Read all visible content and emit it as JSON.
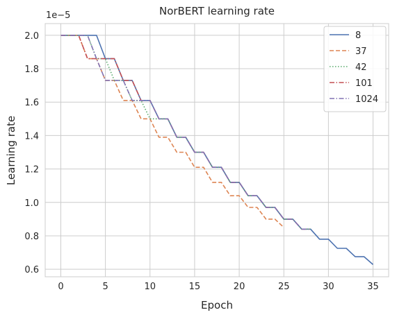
{
  "chart_data": {
    "type": "line",
    "title": "NorBERT learning rate",
    "xlabel": "Epoch",
    "ylabel": "Learning rate",
    "y_offset_label": "1e−5",
    "xlim": [
      -1.75,
      36.75
    ],
    "ylim": [
      0.555,
      2.07
    ],
    "x_ticks": [
      0,
      5,
      10,
      15,
      20,
      25,
      30,
      35
    ],
    "y_ticks": [
      0.6,
      0.8,
      1.0,
      1.2,
      1.4,
      1.6,
      1.8,
      2.0
    ],
    "y_tick_labels": [
      "0.6",
      "0.8",
      "1.0",
      "1.2",
      "1.4",
      "1.6",
      "1.8",
      "2.0"
    ],
    "grid": true,
    "legend_position": "top-right",
    "series": [
      {
        "name": "8",
        "color": "#4c72b0",
        "dash": "solid",
        "x": [
          0,
          4,
          5,
          6,
          7,
          8,
          9,
          10,
          11,
          12,
          13,
          14,
          15,
          16,
          17,
          18,
          19,
          20,
          21,
          22,
          23,
          24,
          25,
          26,
          27,
          28,
          29,
          30,
          31,
          32,
          33,
          34,
          35
        ],
        "y": [
          2.0,
          2.0,
          1.86,
          1.86,
          1.73,
          1.73,
          1.61,
          1.61,
          1.5,
          1.5,
          1.39,
          1.39,
          1.3,
          1.3,
          1.21,
          1.21,
          1.12,
          1.12,
          1.04,
          1.04,
          0.97,
          0.97,
          0.9,
          0.9,
          0.84,
          0.84,
          0.78,
          0.78,
          0.725,
          0.725,
          0.675,
          0.675,
          0.628
        ]
      },
      {
        "name": "37",
        "color": "#dd8452",
        "dash": "dashed",
        "x": [
          0,
          2,
          3,
          4,
          5,
          6,
          7,
          8,
          9,
          10,
          11,
          12,
          13,
          14,
          15,
          16,
          17,
          18,
          19,
          20,
          21,
          22,
          23,
          24,
          25
        ],
        "y": [
          2.0,
          2.0,
          1.86,
          1.86,
          1.73,
          1.73,
          1.61,
          1.61,
          1.5,
          1.5,
          1.39,
          1.39,
          1.3,
          1.3,
          1.21,
          1.21,
          1.12,
          1.12,
          1.04,
          1.04,
          0.97,
          0.97,
          0.9,
          0.9,
          0.85
        ]
      },
      {
        "name": "42",
        "color": "#55a868",
        "dash": "dotted",
        "x": [
          0,
          3,
          4,
          5,
          6,
          7,
          8,
          9,
          10,
          11,
          12,
          13,
          14,
          15,
          16,
          17,
          18,
          19,
          20,
          21,
          22,
          23,
          24,
          25,
          26,
          27,
          28
        ],
        "y": [
          2.0,
          2.0,
          1.86,
          1.86,
          1.73,
          1.73,
          1.61,
          1.61,
          1.5,
          1.5,
          1.5,
          1.39,
          1.39,
          1.3,
          1.3,
          1.21,
          1.21,
          1.12,
          1.12,
          1.04,
          1.04,
          0.97,
          0.97,
          0.9,
          0.9,
          0.84,
          0.84
        ]
      },
      {
        "name": "101",
        "color": "#c44e52",
        "dash": "dashdot",
        "x": [
          0,
          2,
          3,
          5,
          6,
          7,
          8,
          9,
          10,
          11,
          12,
          13,
          14,
          15,
          16,
          17,
          18,
          19,
          20,
          21,
          22,
          23,
          24,
          25,
          26,
          27,
          28
        ],
        "y": [
          2.0,
          2.0,
          1.86,
          1.86,
          1.86,
          1.73,
          1.73,
          1.61,
          1.61,
          1.5,
          1.5,
          1.39,
          1.39,
          1.3,
          1.3,
          1.21,
          1.21,
          1.12,
          1.12,
          1.04,
          1.04,
          0.97,
          0.97,
          0.9,
          0.9,
          0.84,
          0.84
        ]
      },
      {
        "name": "1024",
        "color": "#8172b3",
        "dash": "dashdot",
        "x": [
          0,
          3,
          4,
          5,
          6,
          7,
          8,
          9,
          10,
          11,
          12,
          13,
          14,
          15,
          16,
          17,
          18,
          19,
          20,
          21,
          22,
          23,
          24,
          25,
          26,
          27,
          28
        ],
        "y": [
          2.0,
          2.0,
          1.86,
          1.73,
          1.73,
          1.73,
          1.61,
          1.61,
          1.61,
          1.5,
          1.5,
          1.39,
          1.39,
          1.3,
          1.3,
          1.21,
          1.21,
          1.12,
          1.12,
          1.04,
          1.04,
          0.97,
          0.97,
          0.9,
          0.9,
          0.84,
          0.84
        ]
      }
    ]
  }
}
